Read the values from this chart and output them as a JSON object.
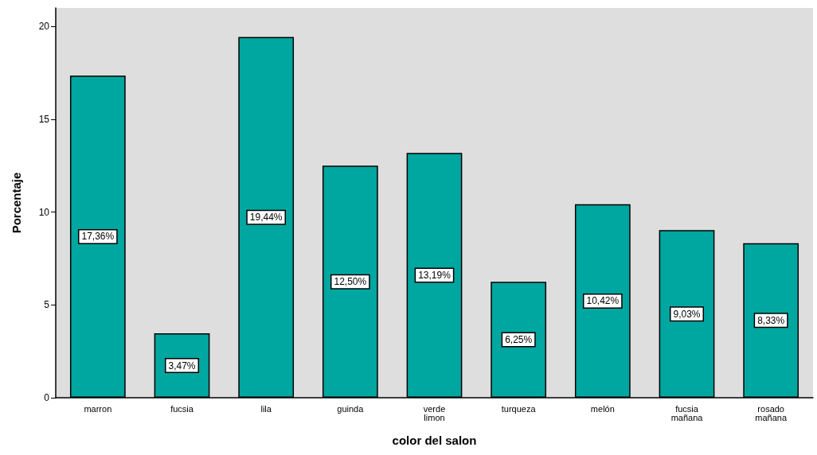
{
  "chart_data": {
    "type": "bar",
    "xlabel": "color del salon",
    "ylabel": "Porcentaje",
    "categories": [
      "marron",
      "fucsia",
      "lila",
      "guinda",
      "verde limon",
      "turqueza",
      "melón",
      "fucsia mañana",
      "rosado mañana"
    ],
    "values": [
      17.36,
      3.47,
      19.44,
      12.5,
      13.19,
      6.25,
      10.42,
      9.03,
      8.33
    ],
    "value_labels": [
      "17,36%",
      "3,47%",
      "19,44%",
      "12,50%",
      "13,19%",
      "6,25%",
      "10,42%",
      "9,03%",
      "8,33%"
    ],
    "color": "#00a6a0",
    "ylim": [
      0,
      21
    ],
    "yticks": [
      0,
      5,
      10,
      15,
      20
    ]
  }
}
